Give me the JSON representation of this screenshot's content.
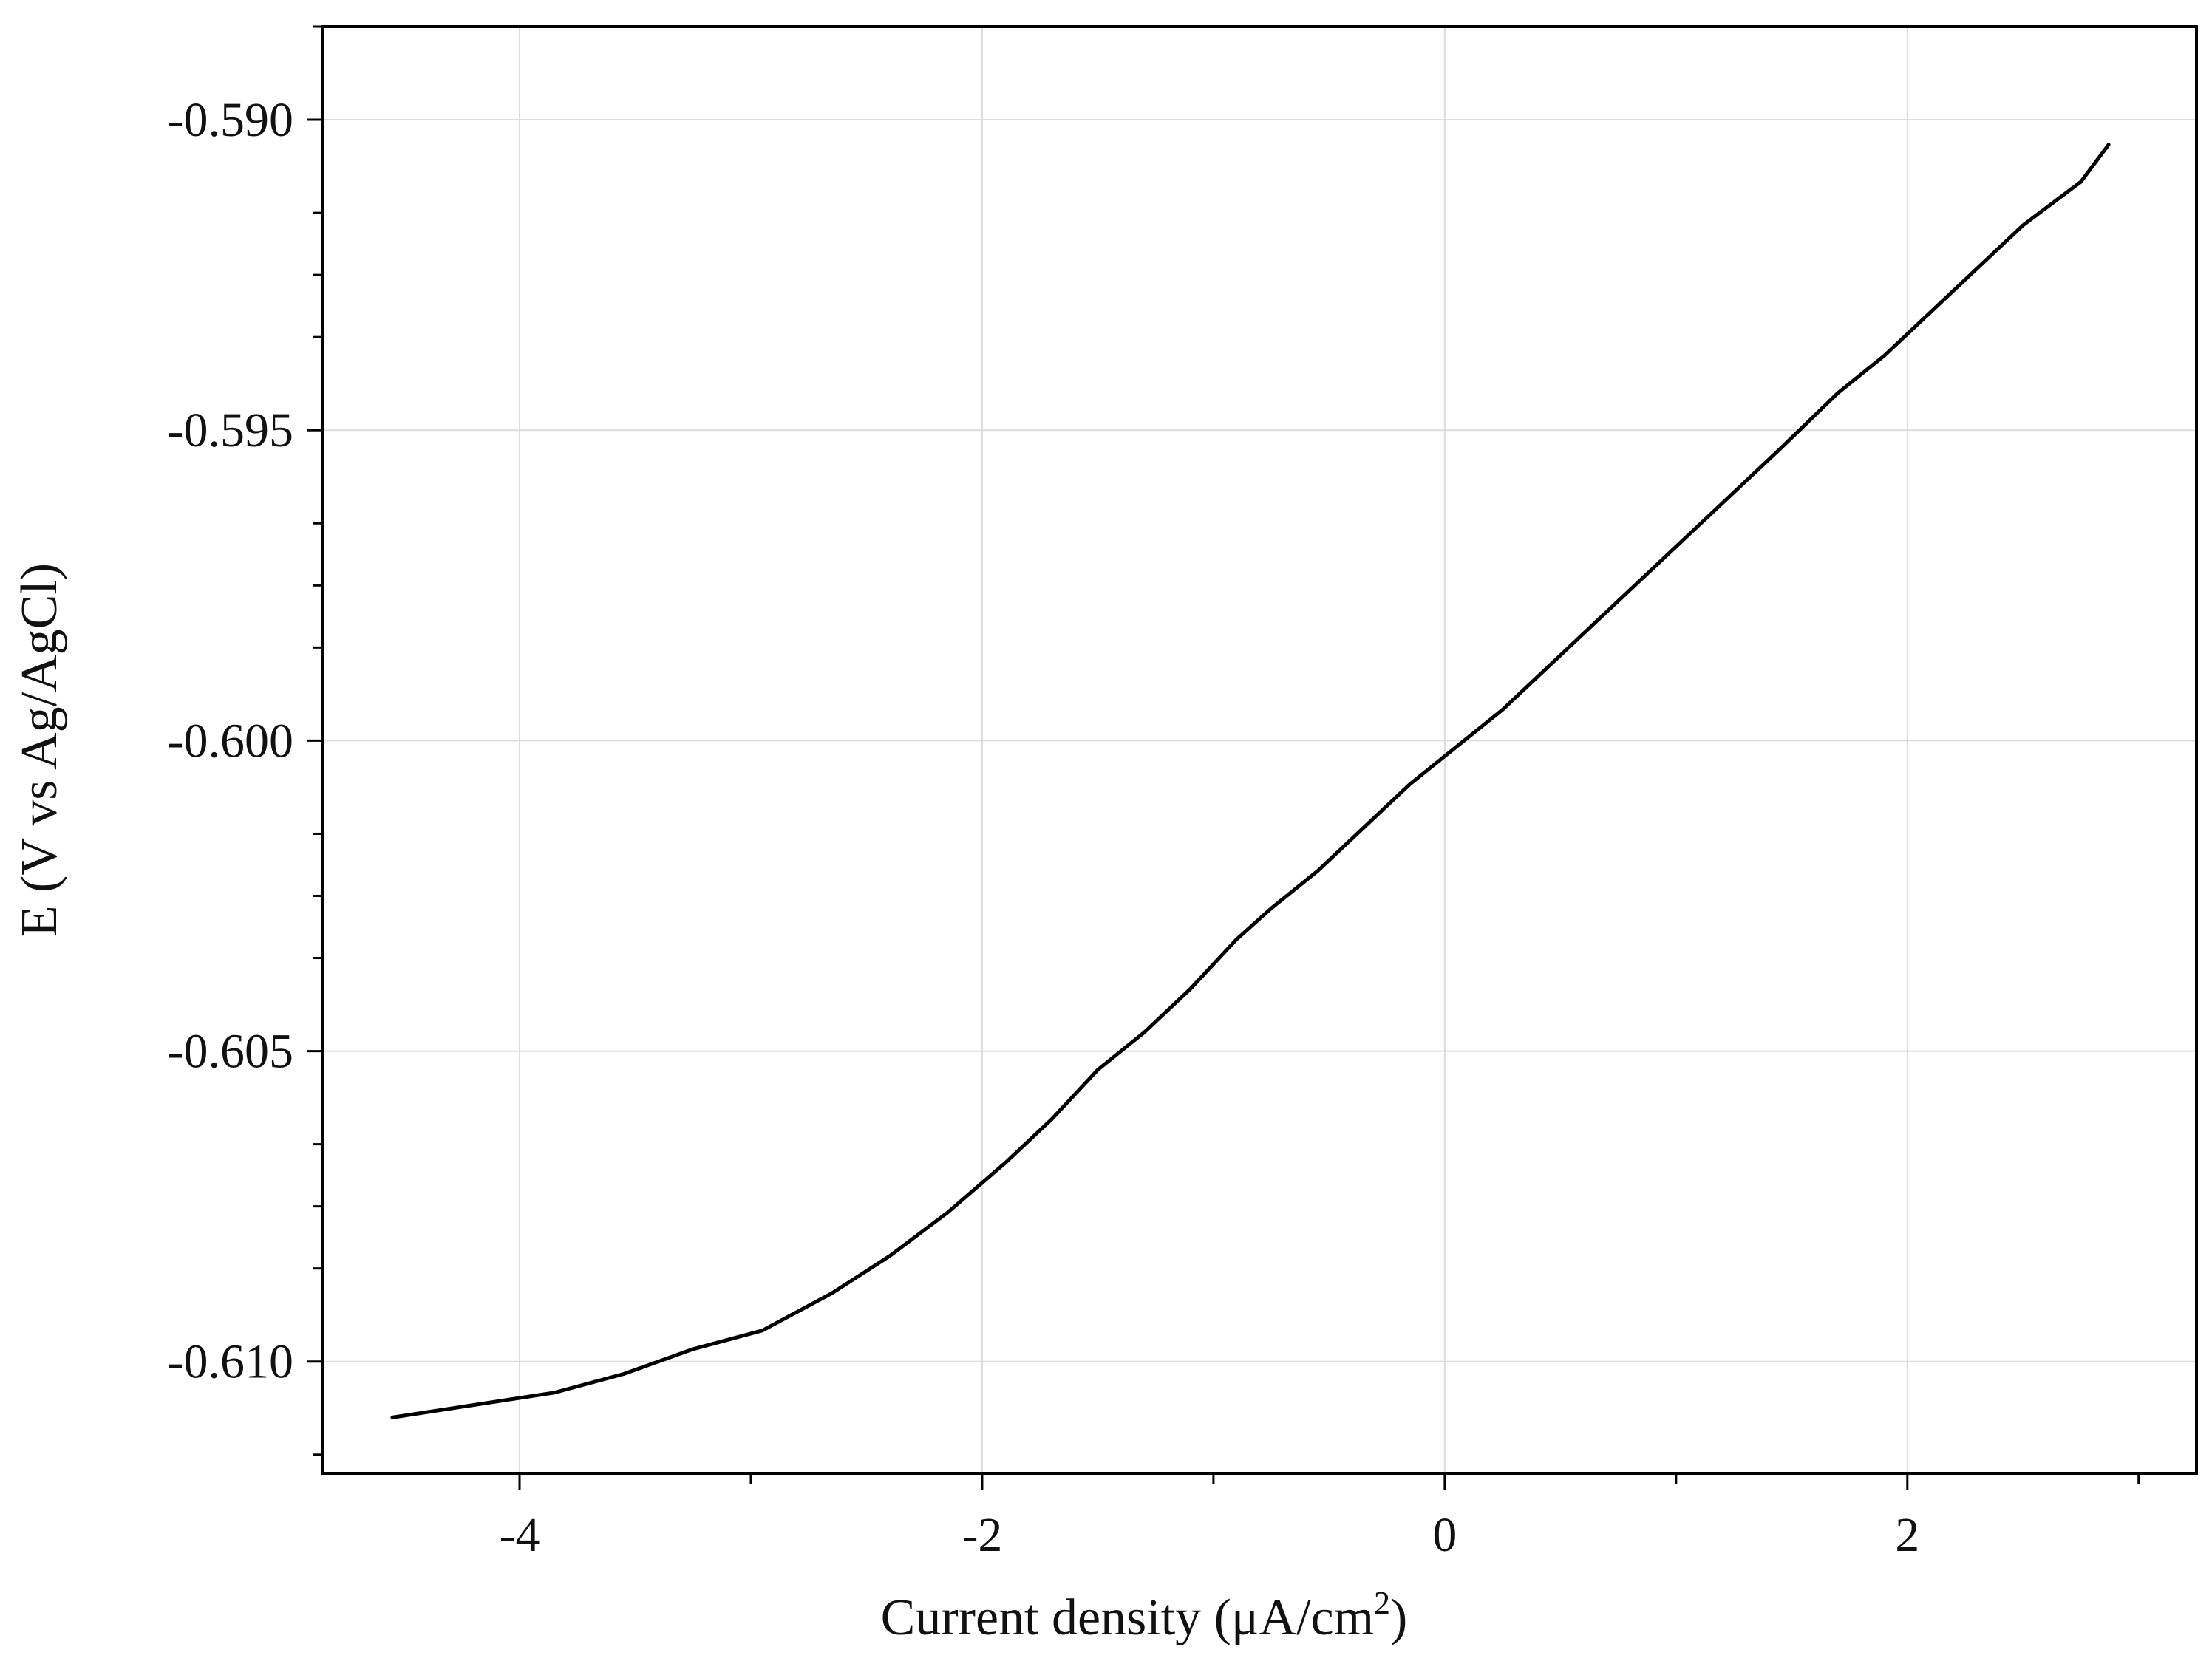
{
  "chart_data": {
    "type": "line",
    "xlabel": "Current density (μA/cm",
    "xlabel_superscript": "2",
    "xlabel_suffix": ")",
    "ylabel": "E (V vs Ag/AgCl)",
    "xlim": [
      -4.85,
      3.25
    ],
    "ylim": [
      -0.6118,
      -0.5885
    ],
    "x_ticks": [
      -4,
      -2,
      0,
      2
    ],
    "x_tick_labels": [
      "-4",
      "-2",
      "0",
      "2"
    ],
    "x_minor_ticks": [
      -3,
      -1,
      1,
      3
    ],
    "y_ticks": [
      -0.59,
      -0.595,
      -0.6,
      -0.605,
      -0.61
    ],
    "y_tick_labels": [
      "-0.590",
      "-0.595",
      "-0.600",
      "-0.605",
      "-0.610"
    ],
    "y_minor_ticks": [
      -0.5885,
      -0.5915,
      -0.5925,
      -0.5935,
      -0.5965,
      -0.5975,
      -0.5985,
      -0.6015,
      -0.6025,
      -0.6035,
      -0.6065,
      -0.6075,
      -0.6085,
      -0.6115
    ],
    "grid": true,
    "series": [
      {
        "color": "#000000",
        "x": [
          -4.55,
          -4.2,
          -3.85,
          -3.55,
          -3.25,
          -2.95,
          -2.65,
          -2.4,
          -2.15,
          -1.9,
          -1.7,
          -1.5,
          -1.3,
          -1.1,
          -0.9,
          -0.75,
          -0.55,
          -0.35,
          -0.15,
          0.05,
          0.25,
          0.45,
          0.65,
          0.85,
          1.05,
          1.25,
          1.45,
          1.7,
          1.9,
          2.1,
          2.3,
          2.5,
          2.75,
          2.87
        ],
        "y": [
          -0.6109,
          -0.6107,
          -0.6105,
          -0.6102,
          -0.6098,
          -0.6095,
          -0.6089,
          -0.6083,
          -0.6076,
          -0.6068,
          -0.6061,
          -0.6053,
          -0.6047,
          -0.604,
          -0.6032,
          -0.6027,
          -0.6021,
          -0.6014,
          -0.6007,
          -0.6001,
          -0.5995,
          -0.5988,
          -0.5981,
          -0.5974,
          -0.5967,
          -0.596,
          -0.5953,
          -0.5944,
          -0.5938,
          -0.5931,
          -0.5924,
          -0.5917,
          -0.591,
          -0.5904
        ]
      }
    ]
  }
}
